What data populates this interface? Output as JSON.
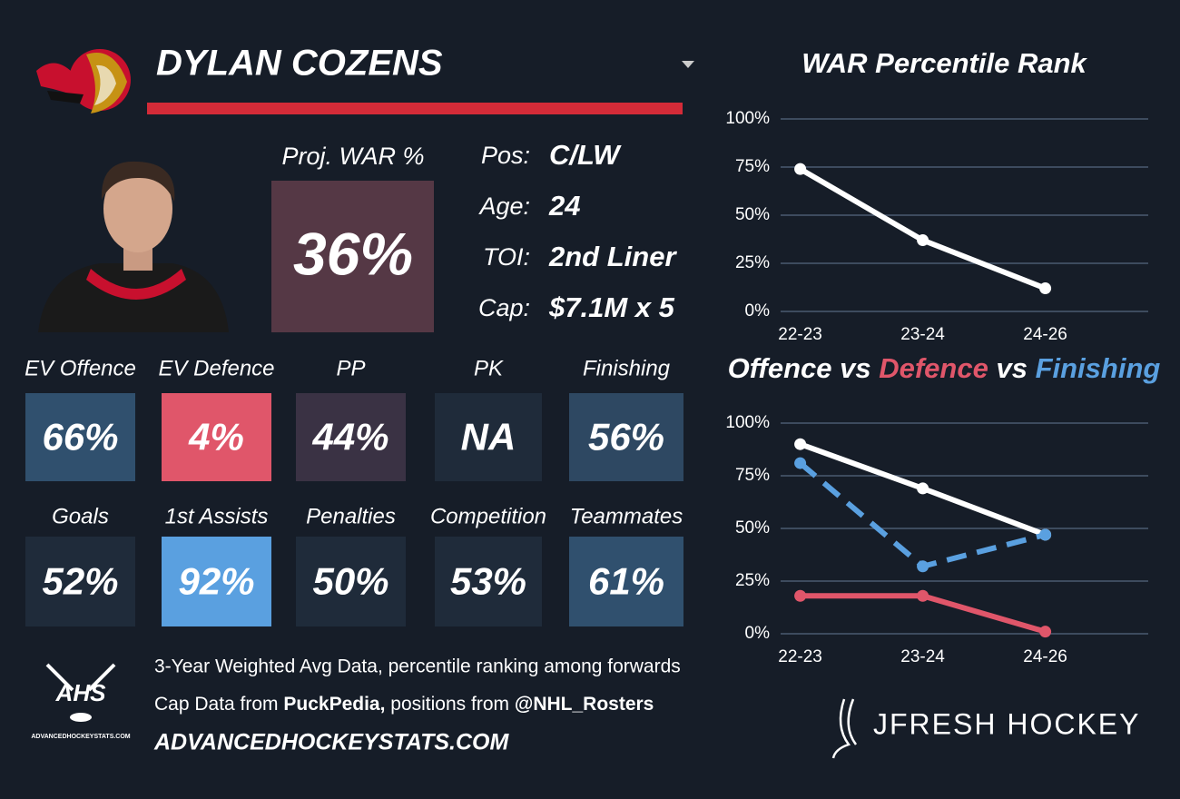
{
  "header": {
    "name": "DYLAN COZENS"
  },
  "projection": {
    "label": "Proj. WAR %",
    "value": "36%",
    "color": "#553845"
  },
  "info": [
    [
      "Pos:",
      "C/LW"
    ],
    [
      "Age:",
      "24"
    ],
    [
      "TOI:",
      "2nd Liner"
    ],
    [
      "Cap:",
      "$7.1M x 5"
    ]
  ],
  "tiles": [
    {
      "label": "EV Offence",
      "value": "66%",
      "color": "#30506e"
    },
    {
      "label": "EV Defence",
      "value": "4%",
      "color": "#e0566a"
    },
    {
      "label": "PP",
      "value": "44%",
      "color": "#3a3244"
    },
    {
      "label": "PK",
      "value": "NA",
      "color": "#1f2b3a"
    },
    {
      "label": "Finishing",
      "value": "56%",
      "color": "#2e4862"
    },
    {
      "label": "Goals",
      "value": "52%",
      "color": "#1f2b3a"
    },
    {
      "label": "1st Assists",
      "value": "92%",
      "color": "#5aa0e0"
    },
    {
      "label": "Penalties",
      "value": "50%",
      "color": "#1f2b3a"
    },
    {
      "label": "Competition",
      "value": "53%",
      "color": "#1f2b3a"
    },
    {
      "label": "Teammates",
      "value": "61%",
      "color": "#30506e"
    }
  ],
  "footer": {
    "note": "3-Year Weighted Avg Data, percentile ranking among forwards",
    "cap_line": [
      "Cap Data from ",
      "PuckPedia,",
      " positions from ",
      "@NHL_Rosters"
    ],
    "site": "ADVANCEDHOCKEYSTATS.COM",
    "logo_text": "AHS",
    "logo_sub": "ADVANCEDHOCKEYSTATS.COM",
    "brand": "JFRESH HOCKEY"
  },
  "chart_data": [
    {
      "type": "line",
      "title": "WAR Percentile Rank",
      "categories": [
        "22-23",
        "23-24",
        "24-26"
      ],
      "series": [
        {
          "color": "#ffffff",
          "values": [
            74,
            37,
            12
          ]
        }
      ],
      "ylim": [
        0,
        100
      ],
      "yticks": [
        {
          "value": 0,
          "label": "0%"
        },
        {
          "value": 25,
          "label": "25%"
        },
        {
          "value": 50,
          "label": "50%"
        },
        {
          "value": 75,
          "label": "75%"
        },
        {
          "value": 100,
          "label": "100%"
        }
      ],
      "grid": true
    },
    {
      "type": "line",
      "separator": " vs ",
      "categories": [
        "22-23",
        "23-24",
        "24-26"
      ],
      "series": [
        {
          "name": "Offence",
          "color": "#ffffff",
          "values": [
            90,
            69,
            47
          ]
        },
        {
          "name": "Defence",
          "color": "#e0566a",
          "values": [
            18,
            18,
            1
          ]
        },
        {
          "name": "Finishing",
          "color": "#5aa0e0",
          "values": [
            81,
            32,
            47
          ],
          "dashed": true
        }
      ],
      "ylim": [
        0,
        100
      ],
      "yticks": [
        {
          "value": 0,
          "label": "0%"
        },
        {
          "value": 25,
          "label": "25%"
        },
        {
          "value": 50,
          "label": "50%"
        },
        {
          "value": 75,
          "label": "75%"
        },
        {
          "value": 100,
          "label": "100%"
        }
      ],
      "grid": true
    }
  ]
}
